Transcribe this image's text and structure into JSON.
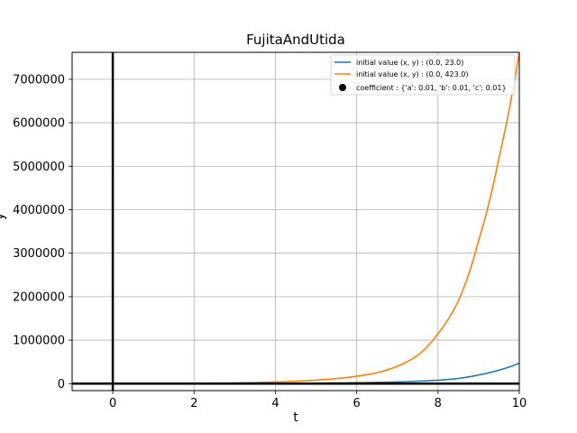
{
  "chart_data": {
    "type": "line",
    "title": "FujitaAndUtida",
    "xlabel": "t",
    "ylabel": "y",
    "xlim": [
      -1,
      10
    ],
    "ylim": [
      -160000,
      7620000
    ],
    "xticks": [
      0,
      2,
      4,
      6,
      8,
      10
    ],
    "yticks": [
      0,
      1000000,
      2000000,
      3000000,
      4000000,
      5000000,
      6000000,
      7000000
    ],
    "xtick_labels": [
      "0",
      "2",
      "4",
      "6",
      "8",
      "10"
    ],
    "ytick_labels": [
      "0",
      "1000000",
      "2000000",
      "3000000",
      "4000000",
      "5000000",
      "6000000",
      "7000000"
    ],
    "grid": true,
    "legend_position": "top-right",
    "series": [
      {
        "name": "initial value (x, y) : (0.0, 23.0)",
        "color": "#1f77b4",
        "x": [
          0,
          1,
          2,
          3,
          4,
          5,
          6,
          7,
          8,
          8.5,
          9,
          9.5,
          10
        ],
        "y": [
          0,
          600,
          1500,
          3000,
          6000,
          12000,
          22000,
          40000,
          78000,
          120000,
          200000,
          310000,
          470000
        ]
      },
      {
        "name": "initial value (x, y) : (0.0, 423.0)",
        "color": "#ff7f0e",
        "x": [
          0,
          1,
          2,
          3,
          4,
          5,
          6,
          6.5,
          7,
          7.5,
          8,
          8.5,
          9,
          9.5,
          10
        ],
        "y": [
          0,
          3000,
          8000,
          18000,
          40000,
          80000,
          170000,
          250000,
          400000,
          650000,
          1150000,
          1900000,
          3300000,
          5200000,
          7620000
        ]
      }
    ],
    "legend_extra": {
      "label": "coefficient : {'a': 0.01, 'b': 0.01, 'c': 0.01}",
      "marker": "dot",
      "color": "#000000"
    }
  }
}
